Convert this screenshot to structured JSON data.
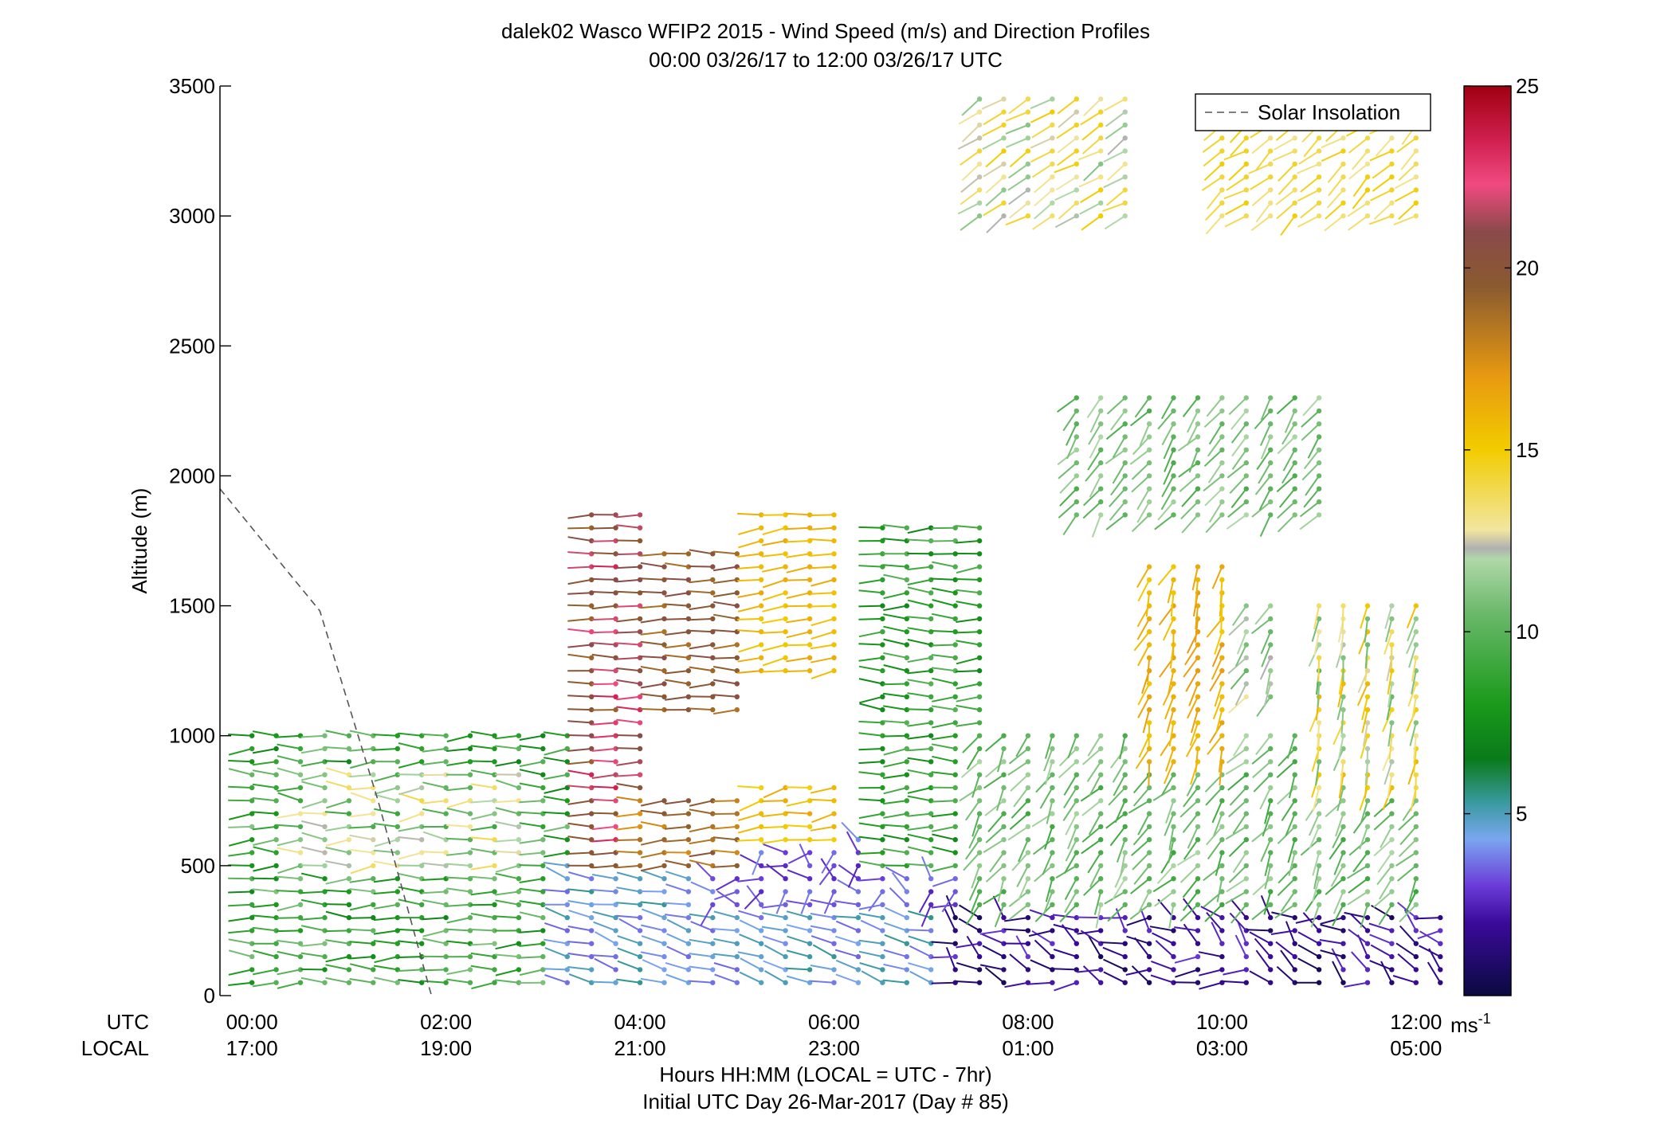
{
  "chart_data": {
    "type": "scatter",
    "title": "dalek02 Wasco WFIP2 2015 - Wind Speed (m/s) and Direction Profiles",
    "subtitle": "00:00 03/26/17 to 12:00 03/26/17  UTC",
    "ylabel": "Altitude (m)",
    "xlabel": "Hours HH:MM  (LOCAL = UTC - 7hr)",
    "xlabel2": "Initial UTC Day 26-Mar-2017 (Day # 85)",
    "utc_label": "UTC",
    "local_label": "LOCAL",
    "ylim": [
      0,
      3500
    ],
    "xlim_hours": [
      -0.33,
      12.33
    ],
    "yticks": [
      {
        "v": 0,
        "label": "0"
      },
      {
        "v": 500,
        "label": "500"
      },
      {
        "v": 1000,
        "label": "1000"
      },
      {
        "v": 1500,
        "label": "1500"
      },
      {
        "v": 2000,
        "label": "2000"
      },
      {
        "v": 2500,
        "label": "2500"
      },
      {
        "v": 3000,
        "label": "3000"
      },
      {
        "v": 3500,
        "label": "3500"
      }
    ],
    "xticks": [
      {
        "h": 0,
        "utc": "00:00",
        "local": "17:00"
      },
      {
        "h": 2,
        "utc": "02:00",
        "local": "19:00"
      },
      {
        "h": 4,
        "utc": "04:00",
        "local": "21:00"
      },
      {
        "h": 6,
        "utc": "06:00",
        "local": "23:00"
      },
      {
        "h": 8,
        "utc": "08:00",
        "local": "01:00"
      },
      {
        "h": 10,
        "utc": "10:00",
        "local": "03:00"
      },
      {
        "h": 12,
        "utc": "12:00",
        "local": "05:00"
      }
    ],
    "legend": {
      "label": "Solar Insolation",
      "placement": "top-right"
    },
    "solar_insolation": {
      "x": [
        -0.33,
        0.7,
        1.3,
        1.85
      ],
      "y": [
        1950,
        1480,
        750,
        0
      ]
    },
    "colorbar": {
      "range": [
        0,
        25
      ],
      "ticks": [
        {
          "v": 5,
          "label": "5"
        },
        {
          "v": 10,
          "label": "10"
        },
        {
          "v": 15,
          "label": "15"
        },
        {
          "v": 20,
          "label": "20"
        },
        {
          "v": 25,
          "label": "25"
        }
      ],
      "unit": "ms",
      "unit_exp": "-1",
      "stops": [
        {
          "v": 0,
          "c": "#0a0a40"
        },
        {
          "v": 2,
          "c": "#3a0a9a"
        },
        {
          "v": 3,
          "c": "#6a3ad8"
        },
        {
          "v": 4.3,
          "c": "#7aa6f0"
        },
        {
          "v": 5.3,
          "c": "#3a9aa0"
        },
        {
          "v": 6.5,
          "c": "#0a7a1a"
        },
        {
          "v": 8,
          "c": "#1a9a1a"
        },
        {
          "v": 10.5,
          "c": "#6ab86a"
        },
        {
          "v": 12,
          "c": "#b0d8a8"
        },
        {
          "v": 12.3,
          "c": "#b0b0b0"
        },
        {
          "v": 12.8,
          "c": "#f2e6a0"
        },
        {
          "v": 15,
          "c": "#f2cc00"
        },
        {
          "v": 17,
          "c": "#e89a10"
        },
        {
          "v": 19.5,
          "c": "#8a5a30"
        },
        {
          "v": 21,
          "c": "#8a4a4a"
        },
        {
          "v": 22.3,
          "c": "#f04a80"
        },
        {
          "v": 23.5,
          "c": "#d02050"
        },
        {
          "v": 25,
          "c": "#a00010"
        }
      ]
    },
    "wind_regions": [
      {
        "t0": -0.1,
        "t1": 3.8,
        "z0": 40,
        "z1": 1000,
        "spd": [
          7,
          11
        ],
        "dir": [
          255,
          285
        ]
      },
      {
        "t0": 0.5,
        "t1": 2.8,
        "z0": 500,
        "z1": 880,
        "spd": [
          9,
          14
        ],
        "dir": [
          250,
          290
        ]
      },
      {
        "t0": 3.2,
        "t1": 7.3,
        "z0": 40,
        "z1": 520,
        "spd": [
          3.5,
          5.5
        ],
        "dir": [
          270,
          300
        ]
      },
      {
        "t0": 7.2,
        "t1": 12.3,
        "z0": 40,
        "z1": 330,
        "spd": [
          0.5,
          3
        ],
        "dir": [
          250,
          340
        ]
      },
      {
        "t0": 4.6,
        "t1": 8.2,
        "z0": 340,
        "z1": 620,
        "spd": [
          2.5,
          4
        ],
        "dir": [
          200,
          340
        ]
      },
      {
        "t0": 3.3,
        "t1": 4.1,
        "z0": 480,
        "z1": 1880,
        "spd": [
          19,
          23.5
        ],
        "dir": [
          260,
          280
        ]
      },
      {
        "t0": 4.0,
        "t1": 5.2,
        "z0": 500,
        "z1": 790,
        "spd": [
          17,
          20
        ],
        "dir": [
          255,
          285
        ]
      },
      {
        "t0": 4.1,
        "t1": 5.0,
        "z0": 1100,
        "z1": 1740,
        "spd": [
          18.5,
          21
        ],
        "dir": [
          260,
          280
        ]
      },
      {
        "t0": 5.1,
        "t1": 6.0,
        "z0": 560,
        "z1": 840,
        "spd": [
          14.5,
          16.5
        ],
        "dir": [
          245,
          275
        ]
      },
      {
        "t0": 5.1,
        "t1": 6.0,
        "z0": 1250,
        "z1": 1850,
        "spd": [
          15,
          16.5
        ],
        "dir": [
          250,
          275
        ]
      },
      {
        "t0": 6.3,
        "t1": 7.6,
        "z0": 500,
        "z1": 1800,
        "spd": [
          7,
          10
        ],
        "dir": [
          255,
          285
        ]
      },
      {
        "t0": 7.4,
        "t1": 12.1,
        "z0": 320,
        "z1": 1000,
        "spd": [
          9,
          12
        ],
        "dir": [
          190,
          240
        ]
      },
      {
        "t0": 9.1,
        "t1": 10.2,
        "z0": 900,
        "z1": 1650,
        "spd": [
          15,
          17
        ],
        "dir": [
          180,
          220
        ]
      },
      {
        "t0": 10.2,
        "t1": 10.7,
        "z0": 1150,
        "z1": 1500,
        "spd": [
          10,
          13
        ],
        "dir": [
          190,
          240
        ]
      },
      {
        "t0": 11.0,
        "t1": 12.0,
        "z0": 800,
        "z1": 1500,
        "spd": [
          10,
          16
        ],
        "dir": [
          180,
          205
        ]
      },
      {
        "t0": 8.5,
        "t1": 11.0,
        "z0": 1850,
        "z1": 2330,
        "spd": [
          9.5,
          12
        ],
        "dir": [
          200,
          235
        ]
      },
      {
        "t0": 7.3,
        "t1": 9.0,
        "z0": 3000,
        "z1": 3480,
        "spd": [
          11,
          15
        ],
        "dir": [
          225,
          250
        ]
      },
      {
        "t0": 10.0,
        "t1": 12.0,
        "z0": 3000,
        "z1": 3480,
        "spd": [
          13,
          15
        ],
        "dir": [
          215,
          250
        ]
      }
    ]
  }
}
